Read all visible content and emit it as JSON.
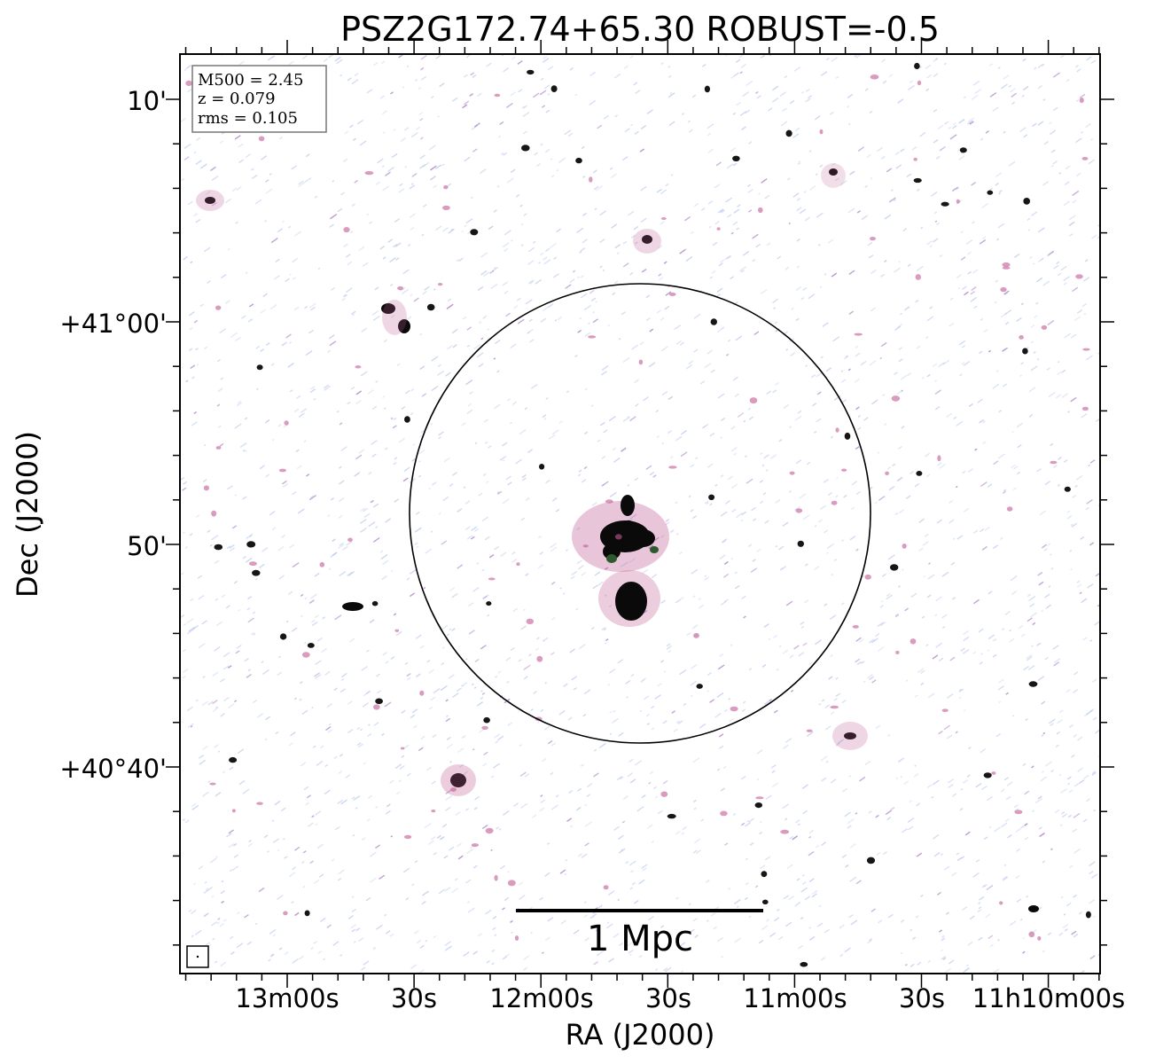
{
  "title": "PSZ2G172.74+65.30 ROBUST=-0.5",
  "info_box": {
    "lines": [
      "M500 = 2.45",
      "z = 0.079",
      "rms = 0.105"
    ]
  },
  "x_axis": {
    "label": "RA (J2000)",
    "ticks": [
      "13m00s",
      "30s",
      "12m00s",
      "30s",
      "11m00s",
      "30s",
      "11h10m00s"
    ]
  },
  "y_axis": {
    "label": "Dec (J2000)",
    "ticks": [
      "10'",
      "+41°00'",
      "50'",
      "+40°40'"
    ]
  },
  "scale_bar": {
    "label": "1 Mpc"
  },
  "colors": {
    "noise_blue": "#b8c8ec",
    "noise_purple": "#a070c0",
    "source_magenta": "#c05a92",
    "source_dark": "#0a0a0a",
    "source_green": "#2c5a2c",
    "frame": "#000000"
  },
  "icons": [
    "beam-marker-icon"
  ]
}
